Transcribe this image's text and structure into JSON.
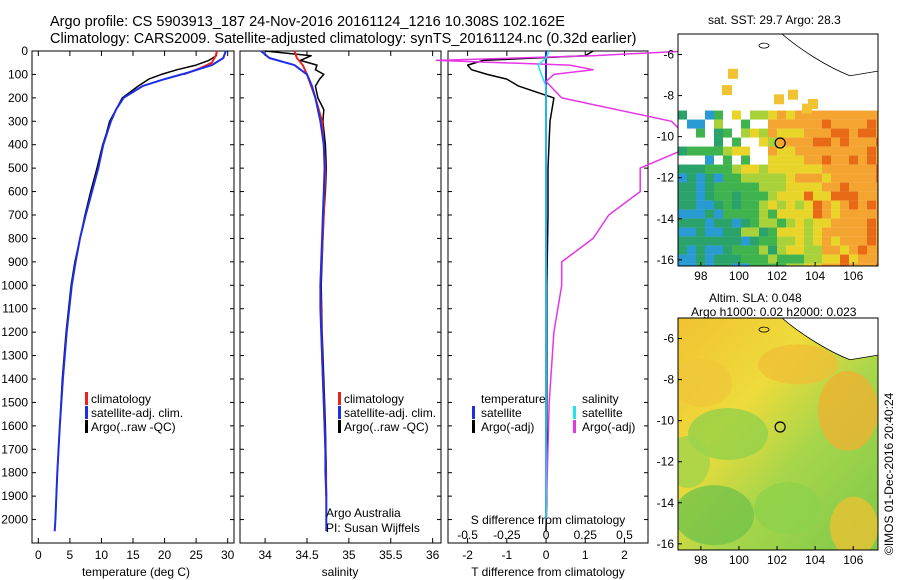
{
  "header": {
    "line1": "Argo profile: CS 5903913_187 24-Nov-2016 20161124_1216 10.308S 102.162E",
    "line2": "Climatology: CARS2009. Satellite-adjusted climatology: synTS_20161124.nc (0.32d earlier)"
  },
  "colors": {
    "climatology": "#e8231e",
    "satellite": "#1f2ee6",
    "argo": "#000000",
    "sat_salinity": "#22e3f0",
    "argo_salinity": "#e635e6"
  },
  "panel_labels": {
    "temperature_x": "temperature (deg C)",
    "salinity_x": "salinity",
    "diff_top": "S difference from climatology",
    "diff_bottom": "T difference from climatology",
    "argo_australia": "Argo Australia",
    "pi": "PI: Susan Wijffels"
  },
  "legend_profile": [
    "climatology",
    "satellite-adj. clim.",
    "Argo(..raw -QC)"
  ],
  "legend_diff": {
    "t_head": "temperature",
    "s_head": "salinity",
    "t_items": [
      "satellite",
      "Argo(-adj)"
    ],
    "s_items": [
      "satellite",
      "Argo(-adj)"
    ]
  },
  "maps": {
    "sst_title": "sat. SST: 29.7 Argo: 28.3",
    "sla_title1": "Altim. SLA: 0.048",
    "sla_title2": "Argo h1000: 0.02 h2000: 0.023",
    "lon_ticks": [
      98,
      100,
      102,
      104,
      106
    ],
    "lat_ticks": [
      -6,
      -8,
      -10,
      -12,
      -14,
      -16
    ],
    "lon_range": [
      96.8,
      107.3
    ],
    "lat_range": [
      -16.3,
      -5.0
    ],
    "argo_position": {
      "lon": 102.162,
      "lat": -10.308
    }
  },
  "footer": {
    "imos": "©IMOS 01-Dec-2016 20:40:24"
  },
  "chart_data": [
    {
      "type": "line",
      "xlabel": "temperature (deg C)",
      "xlim": [
        -1,
        31
      ],
      "ylim": [
        2100,
        0
      ],
      "x_ticks": [
        0,
        5,
        10,
        15,
        20,
        25,
        30
      ],
      "y_ticks": [
        0,
        100,
        200,
        300,
        400,
        500,
        600,
        700,
        800,
        900,
        1000,
        1100,
        1200,
        1300,
        1400,
        1500,
        1600,
        1700,
        1800,
        1900,
        2000
      ],
      "series": [
        {
          "name": "climatology",
          "depth": [
            0,
            20,
            50,
            75,
            100
          ],
          "values": [
            28.3,
            28.1,
            27.5,
            25.5,
            23.0
          ]
        },
        {
          "name": "satellite-adj. clim.",
          "depth": [
            0,
            30,
            60,
            90,
            120,
            150,
            200,
            250,
            300,
            400,
            500,
            600,
            700,
            800,
            900,
            1000,
            1200,
            1400,
            1600,
            1800,
            2000,
            2050
          ],
          "values": [
            29.7,
            29.3,
            27.5,
            24.0,
            20.0,
            16.5,
            13.5,
            12.3,
            11.5,
            10.3,
            9.5,
            8.5,
            7.5,
            6.6,
            5.9,
            5.3,
            4.5,
            3.9,
            3.4,
            3.0,
            2.7,
            2.6
          ]
        },
        {
          "name": "Argo(..raw -QC)",
          "depth": [
            0,
            20,
            40,
            60,
            80,
            100,
            120,
            150,
            200,
            250,
            300,
            350,
            400,
            500,
            600,
            700,
            800,
            900,
            1000,
            1200,
            1400,
            1600,
            1800,
            2000
          ],
          "values": [
            28.3,
            28.2,
            27.0,
            25.0,
            22.0,
            19.5,
            17.5,
            15.8,
            13.3,
            12.3,
            11.3,
            10.8,
            10.2,
            9.3,
            8.3,
            7.4,
            6.6,
            5.8,
            5.2,
            4.4,
            3.8,
            3.4,
            3.0,
            2.7
          ]
        }
      ]
    },
    {
      "type": "line",
      "xlabel": "salinity",
      "xlim": [
        33.7,
        36.1
      ],
      "ylim": [
        2100,
        0
      ],
      "x_ticks": [
        34,
        34.5,
        35,
        35.5,
        36
      ],
      "series": [
        {
          "name": "climatology",
          "depth": [
            0,
            30,
            60,
            100,
            200,
            300,
            500,
            700,
            1000,
            1300,
            1500,
            1700,
            1900
          ],
          "values": [
            34.35,
            34.38,
            34.45,
            34.5,
            34.6,
            34.68,
            34.72,
            34.7,
            34.66,
            34.68,
            34.7,
            34.72,
            34.73
          ]
        },
        {
          "name": "satellite-adj. clim.",
          "depth": [
            0,
            30,
            60,
            100,
            150,
            200,
            300,
            400,
            500,
            600,
            700,
            800,
            900,
            1000,
            1100,
            1200,
            1300,
            1400,
            1500,
            1600,
            1700,
            1800,
            1900,
            2000,
            2050
          ],
          "values": [
            33.95,
            34.05,
            34.35,
            34.5,
            34.56,
            34.6,
            34.66,
            34.7,
            34.71,
            34.7,
            34.69,
            34.68,
            34.67,
            34.66,
            34.66,
            34.67,
            34.68,
            34.69,
            34.7,
            34.71,
            34.72,
            34.72,
            34.73,
            34.73,
            34.73
          ]
        },
        {
          "name": "Argo(..raw -QC)",
          "depth": [
            0,
            20,
            40,
            60,
            80,
            100,
            120,
            150,
            200,
            250,
            300,
            400,
            500,
            600,
            700,
            800,
            1000,
            1200,
            1400,
            1600,
            1800,
            2000
          ],
          "values": [
            34.0,
            34.55,
            34.42,
            34.62,
            34.6,
            34.7,
            34.65,
            34.6,
            34.63,
            34.7,
            34.69,
            34.72,
            34.73,
            34.72,
            34.7,
            34.69,
            34.67,
            34.68,
            34.7,
            34.72,
            34.73,
            34.73
          ]
        }
      ]
    },
    {
      "type": "line",
      "xlabel_top": "S difference from climatology",
      "xlabel": "T difference from climatology",
      "xlim": [
        -2.5,
        2.6
      ],
      "ylim": [
        2100,
        0
      ],
      "x_ticks_T": [
        -2,
        -1,
        0,
        1,
        2
      ],
      "x_ticks_S": [
        -0.5,
        -0.25,
        0,
        0.25,
        0.5
      ],
      "series": [
        {
          "name": "temperature satellite",
          "depth": [
            0,
            30,
            60,
            100,
            150,
            200,
            300,
            500,
            1000,
            2000
          ],
          "values": [
            0,
            0,
            0,
            0,
            0,
            0,
            0,
            0,
            0,
            0
          ]
        },
        {
          "name": "temperature Argo(-adj)",
          "depth": [
            0,
            20,
            40,
            60,
            80,
            100,
            120,
            150,
            200,
            300,
            500,
            700,
            1000,
            1300,
            1600,
            1900,
            2050
          ],
          "values": [
            1.2,
            1.0,
            -1.6,
            -2.0,
            -1.9,
            -1.5,
            -1.0,
            -0.7,
            0.2,
            0.1,
            0.05,
            0.05,
            0.02,
            0.02,
            0.02,
            0.02,
            0.0
          ]
        },
        {
          "name": "salinity satellite",
          "depth": [
            0,
            30,
            60,
            100,
            150,
            200,
            300,
            500,
            1000,
            2000
          ],
          "values": [
            0.02,
            0.0,
            -0.05,
            -0.03,
            0.0,
            0.0,
            0.0,
            0.0,
            0.0,
            0.0
          ]
        },
        {
          "name": "salinity Argo(-adj)",
          "depth": [
            0,
            20,
            40,
            60,
            80,
            100,
            130,
            200,
            300,
            400,
            500,
            600,
            700,
            800,
            900,
            1000,
            1200,
            1500,
            2000
          ],
          "values": [
            0.9,
            0.3,
            -0.7,
            0.15,
            0.3,
            0.05,
            0.0,
            0.1,
            0.8,
            0.95,
            0.6,
            0.6,
            0.4,
            0.3,
            0.1,
            0.1,
            0.05,
            0.02,
            0.0
          ]
        }
      ]
    }
  ]
}
